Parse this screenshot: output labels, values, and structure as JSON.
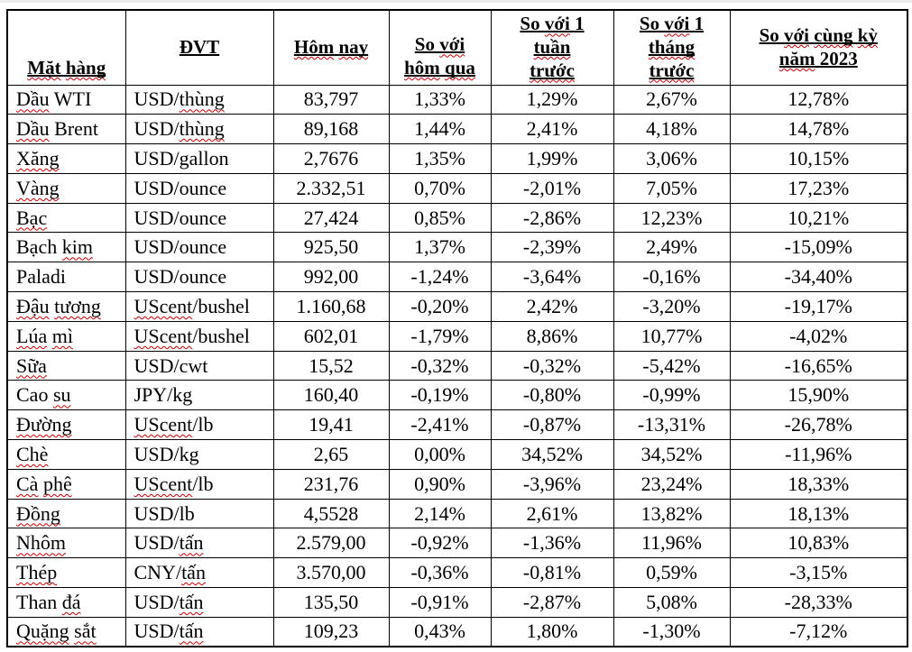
{
  "colors": {
    "table_border": "#000000",
    "text": "#000000",
    "spellcheck_squiggle": "#c00000",
    "background": "#ffffff"
  },
  "table": {
    "header": [
      {
        "slug": "commodity",
        "valign": "bottom",
        "lines": [
          [
            {
              "t": "Mặt",
              "m": 1
            },
            {
              "t": " ",
              "m": 0
            },
            {
              "t": "hàng",
              "m": 1
            }
          ]
        ]
      },
      {
        "slug": "unit",
        "valign": "middle",
        "lines": [
          [
            {
              "t": "ĐVT",
              "m": 0
            }
          ]
        ]
      },
      {
        "slug": "today",
        "valign": "middle",
        "lines": [
          [
            {
              "t": "Hôm",
              "m": 1
            },
            {
              "t": " ",
              "m": 0
            },
            {
              "t": "nay",
              "m": 1
            }
          ]
        ]
      },
      {
        "slug": "vs-yesterday",
        "valign": "bottom",
        "lines": [
          [
            {
              "t": "So ",
              "m": 0
            },
            {
              "t": "với",
              "m": 1
            }
          ],
          [
            {
              "t": "hôm",
              "m": 1
            },
            {
              "t": " ",
              "m": 0
            },
            {
              "t": "qua",
              "m": 1
            }
          ]
        ]
      },
      {
        "slug": "vs-week",
        "valign": "middle",
        "lines": [
          [
            {
              "t": "So ",
              "m": 0
            },
            {
              "t": "với",
              "m": 1
            },
            {
              "t": " 1",
              "m": 0
            }
          ],
          [
            {
              "t": "tuần",
              "m": 1
            }
          ],
          [
            {
              "t": "trước",
              "m": 1
            }
          ]
        ]
      },
      {
        "slug": "vs-month",
        "valign": "middle",
        "lines": [
          [
            {
              "t": "So ",
              "m": 0
            },
            {
              "t": "với",
              "m": 1
            },
            {
              "t": " 1",
              "m": 0
            }
          ],
          [
            {
              "t": "tháng",
              "m": 1
            }
          ],
          [
            {
              "t": "trước",
              "m": 1
            }
          ]
        ]
      },
      {
        "slug": "vs-2023",
        "valign": "middle",
        "lines": [
          [
            {
              "t": "So ",
              "m": 0
            },
            {
              "t": "với",
              "m": 1
            },
            {
              "t": " ",
              "m": 0
            },
            {
              "t": "cùng",
              "m": 1
            },
            {
              "t": " ",
              "m": 0
            },
            {
              "t": "kỳ",
              "m": 1
            }
          ],
          [
            {
              "t": "năm",
              "m": 1
            },
            {
              "t": " 2023",
              "m": 0
            }
          ]
        ]
      }
    ],
    "rows": [
      {
        "name": [
          {
            "t": "Dầu",
            "m": 1
          },
          {
            "t": " WTI",
            "m": 0
          }
        ],
        "unit": [
          {
            "t": "USD/",
            "m": 0
          },
          {
            "t": "thùng",
            "m": 1
          }
        ],
        "values": [
          "83,797",
          "1,33%",
          "1,29%",
          "2,67%",
          "12,78%"
        ]
      },
      {
        "name": [
          {
            "t": "Dầu",
            "m": 1
          },
          {
            "t": " Brent",
            "m": 0
          }
        ],
        "unit": [
          {
            "t": "USD/",
            "m": 0
          },
          {
            "t": "thùng",
            "m": 1
          }
        ],
        "values": [
          "89,168",
          "1,44%",
          "2,41%",
          "4,18%",
          "14,78%"
        ]
      },
      {
        "name": [
          {
            "t": "Xăng",
            "m": 1
          }
        ],
        "unit": [
          {
            "t": "USD/gallon",
            "m": 0
          }
        ],
        "values": [
          "2,7676",
          "1,35%",
          "1,99%",
          "3,06%",
          "10,15%"
        ]
      },
      {
        "name": [
          {
            "t": "Vàng",
            "m": 1
          }
        ],
        "unit": [
          {
            "t": "USD/ounce",
            "m": 0
          }
        ],
        "values": [
          "2.332,51",
          "0,70%",
          "-2,01%",
          "7,05%",
          "17,23%"
        ]
      },
      {
        "name": [
          {
            "t": "Bạc",
            "m": 1
          }
        ],
        "unit": [
          {
            "t": "USD/ounce",
            "m": 0
          }
        ],
        "values": [
          "27,424",
          "0,85%",
          "-2,86%",
          "12,23%",
          "10,21%"
        ]
      },
      {
        "name": [
          {
            "t": "Bạch ",
            "m": 0
          },
          {
            "t": "kim",
            "m": 1
          }
        ],
        "unit": [
          {
            "t": "USD/ounce",
            "m": 0
          }
        ],
        "values": [
          "925,50",
          "1,37%",
          "-2,39%",
          "2,49%",
          "-15,09%"
        ]
      },
      {
        "name": [
          {
            "t": "Paladi",
            "m": 0
          }
        ],
        "unit": [
          {
            "t": "USD/ounce",
            "m": 0
          }
        ],
        "values": [
          "992,00",
          "-1,24%",
          "-3,64%",
          "-0,16%",
          "-34,40%"
        ]
      },
      {
        "name": [
          {
            "t": "Đậu",
            "m": 1
          },
          {
            "t": " ",
            "m": 0
          },
          {
            "t": "tương",
            "m": 1
          }
        ],
        "unit": [
          {
            "t": "UScent",
            "m": 1
          },
          {
            "t": "/bushel",
            "m": 0
          }
        ],
        "values": [
          "1.160,68",
          "-0,20%",
          "2,42%",
          "-3,20%",
          "-19,17%"
        ]
      },
      {
        "name": [
          {
            "t": "Lúa",
            "m": 1
          },
          {
            "t": " ",
            "m": 0
          },
          {
            "t": "mì",
            "m": 1
          }
        ],
        "unit": [
          {
            "t": "UScent",
            "m": 1
          },
          {
            "t": "/bushel",
            "m": 0
          }
        ],
        "values": [
          "602,01",
          "-1,79%",
          "8,86%",
          "10,77%",
          "-4,02%"
        ]
      },
      {
        "name": [
          {
            "t": "Sữa",
            "m": 1
          }
        ],
        "unit": [
          {
            "t": "USD/cwt",
            "m": 0
          }
        ],
        "values": [
          "15,52",
          "-0,32%",
          "-0,32%",
          "-5,42%",
          "-16,65%"
        ]
      },
      {
        "name": [
          {
            "t": "Cao ",
            "m": 0
          },
          {
            "t": "su",
            "m": 1
          }
        ],
        "unit": [
          {
            "t": "JPY/kg",
            "m": 0
          }
        ],
        "values": [
          "160,40",
          "-0,19%",
          "-0,80%",
          "-0,99%",
          "15,90%"
        ]
      },
      {
        "name": [
          {
            "t": "Đường",
            "m": 1
          }
        ],
        "unit": [
          {
            "t": "UScent",
            "m": 1
          },
          {
            "t": "/lb",
            "m": 0
          }
        ],
        "values": [
          "19,41",
          "-2,41%",
          "-0,87%",
          "-13,31%",
          "-26,78%"
        ]
      },
      {
        "name": [
          {
            "t": "Chè",
            "m": 1
          }
        ],
        "unit": [
          {
            "t": "USD/kg",
            "m": 0
          }
        ],
        "values": [
          "2,65",
          "0,00%",
          "34,52%",
          "34,52%",
          "-11,96%"
        ]
      },
      {
        "name": [
          {
            "t": "Cà",
            "m": 1
          },
          {
            "t": " ",
            "m": 0
          },
          {
            "t": "phê",
            "m": 1
          }
        ],
        "unit": [
          {
            "t": "UScent",
            "m": 1
          },
          {
            "t": "/lb",
            "m": 0
          }
        ],
        "values": [
          "231,76",
          "0,90%",
          "-3,96%",
          "23,24%",
          "18,33%"
        ]
      },
      {
        "name": [
          {
            "t": "Đồng",
            "m": 1
          }
        ],
        "unit": [
          {
            "t": "USD/lb",
            "m": 0
          }
        ],
        "values": [
          "4,5528",
          "2,14%",
          "2,61%",
          "13,82%",
          "18,13%"
        ]
      },
      {
        "name": [
          {
            "t": "Nhôm",
            "m": 1
          }
        ],
        "unit": [
          {
            "t": "USD/",
            "m": 0
          },
          {
            "t": "tấn",
            "m": 1
          }
        ],
        "values": [
          "2.579,00",
          "-0,92%",
          "-1,36%",
          "11,96%",
          "10,83%"
        ]
      },
      {
        "name": [
          {
            "t": "Thép",
            "m": 1
          }
        ],
        "unit": [
          {
            "t": "CNY/",
            "m": 0
          },
          {
            "t": "tấn",
            "m": 1
          }
        ],
        "values": [
          "3.570,00",
          "-0,36%",
          "-0,81%",
          "0,59%",
          "-3,15%"
        ]
      },
      {
        "name": [
          {
            "t": "Than ",
            "m": 0
          },
          {
            "t": "đá",
            "m": 1
          }
        ],
        "unit": [
          {
            "t": "USD/",
            "m": 0
          },
          {
            "t": "tấn",
            "m": 1
          }
        ],
        "values": [
          "135,50",
          "-0,91%",
          "-2,87%",
          "5,08%",
          "-28,33%"
        ]
      },
      {
        "name": [
          {
            "t": "Quặng",
            "m": 1
          },
          {
            "t": " ",
            "m": 0
          },
          {
            "t": "sắt",
            "m": 1
          }
        ],
        "unit": [
          {
            "t": "USD/",
            "m": 0
          },
          {
            "t": "tấn",
            "m": 1
          }
        ],
        "values": [
          "109,23",
          "0,43%",
          "1,80%",
          "-1,30%",
          "-7,12%"
        ]
      }
    ]
  },
  "chart_data": {
    "type": "table",
    "title": "",
    "columns": [
      "Mặt hàng",
      "ĐVT",
      "Hôm nay",
      "So với hôm qua",
      "So với 1 tuần trước",
      "So với 1 tháng trước",
      "So với cùng kỳ năm 2023"
    ],
    "rows": [
      [
        "Dầu WTI",
        "USD/thùng",
        "83,797",
        "1,33%",
        "1,29%",
        "2,67%",
        "12,78%"
      ],
      [
        "Dầu Brent",
        "USD/thùng",
        "89,168",
        "1,44%",
        "2,41%",
        "4,18%",
        "14,78%"
      ],
      [
        "Xăng",
        "USD/gallon",
        "2,7676",
        "1,35%",
        "1,99%",
        "3,06%",
        "10,15%"
      ],
      [
        "Vàng",
        "USD/ounce",
        "2.332,51",
        "0,70%",
        "-2,01%",
        "7,05%",
        "17,23%"
      ],
      [
        "Bạc",
        "USD/ounce",
        "27,424",
        "0,85%",
        "-2,86%",
        "12,23%",
        "10,21%"
      ],
      [
        "Bạch kim",
        "USD/ounce",
        "925,50",
        "1,37%",
        "-2,39%",
        "2,49%",
        "-15,09%"
      ],
      [
        "Paladi",
        "USD/ounce",
        "992,00",
        "-1,24%",
        "-3,64%",
        "-0,16%",
        "-34,40%"
      ],
      [
        "Đậu tương",
        "UScent/bushel",
        "1.160,68",
        "-0,20%",
        "2,42%",
        "-3,20%",
        "-19,17%"
      ],
      [
        "Lúa mì",
        "UScent/bushel",
        "602,01",
        "-1,79%",
        "8,86%",
        "10,77%",
        "-4,02%"
      ],
      [
        "Sữa",
        "USD/cwt",
        "15,52",
        "-0,32%",
        "-0,32%",
        "-5,42%",
        "-16,65%"
      ],
      [
        "Cao su",
        "JPY/kg",
        "160,40",
        "-0,19%",
        "-0,80%",
        "-0,99%",
        "15,90%"
      ],
      [
        "Đường",
        "UScent/lb",
        "19,41",
        "-2,41%",
        "-0,87%",
        "-13,31%",
        "-26,78%"
      ],
      [
        "Chè",
        "USD/kg",
        "2,65",
        "0,00%",
        "34,52%",
        "34,52%",
        "-11,96%"
      ],
      [
        "Cà phê",
        "UScent/lb",
        "231,76",
        "0,90%",
        "-3,96%",
        "23,24%",
        "18,33%"
      ],
      [
        "Đồng",
        "USD/lb",
        "4,5528",
        "2,14%",
        "2,61%",
        "13,82%",
        "18,13%"
      ],
      [
        "Nhôm",
        "USD/tấn",
        "2.579,00",
        "-0,92%",
        "-1,36%",
        "11,96%",
        "10,83%"
      ],
      [
        "Thép",
        "CNY/tấn",
        "3.570,00",
        "-0,36%",
        "-0,81%",
        "0,59%",
        "-3,15%"
      ],
      [
        "Than đá",
        "USD/tấn",
        "135,50",
        "-0,91%",
        "-2,87%",
        "5,08%",
        "-28,33%"
      ],
      [
        "Quặng sắt",
        "USD/tấn",
        "109,23",
        "0,43%",
        "1,80%",
        "-1,30%",
        "-7,12%"
      ]
    ]
  }
}
